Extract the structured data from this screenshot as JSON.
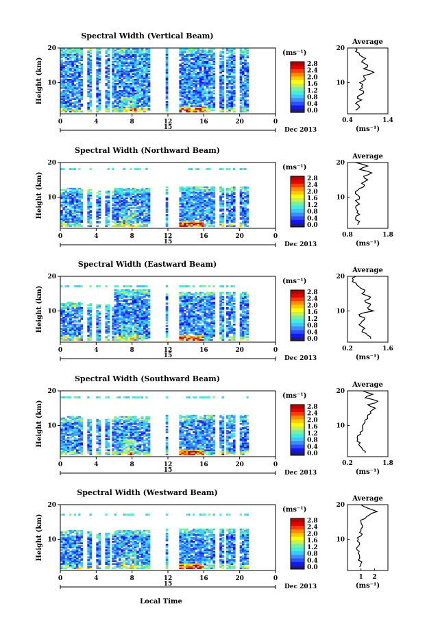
{
  "colorbar": {
    "unit": "(ms⁻¹)",
    "ticks": [
      "0.0",
      "0.4",
      "0.8",
      "1.2",
      "1.6",
      "2.0",
      "2.4",
      "2.8"
    ],
    "vmin": 0.0,
    "vmax": 3.0,
    "colors": [
      "#1e1e6e",
      "#1414ff",
      "#2850ff",
      "#3c8cff",
      "#3cc8ff",
      "#3cf0dc",
      "#78f0a0",
      "#c8f050",
      "#ffff00",
      "#ffc800",
      "#ff8c00",
      "#ff3c00",
      "#e60000",
      "#b40000"
    ]
  },
  "x_axis": {
    "ticks": [
      "0",
      "4",
      "8",
      "12",
      "16",
      "20",
      "0"
    ],
    "day_label": "15",
    "month_label": "Dec 2013",
    "xlabel": "Local Time"
  },
  "height_axis": {
    "label": "Height (km)",
    "ticks": [
      "20",
      "10"
    ]
  },
  "chart_data": [
    {
      "type": "heatmap",
      "title": "Spectral Width (Vertical Beam)",
      "xlabel": "",
      "ylabel": "Height (km)",
      "xlim": [
        0,
        24
      ],
      "ylim": [
        1,
        20
      ],
      "data_gaps_hours": [
        [
          10.5,
          11.6
        ],
        [
          11.7,
          13.2
        ],
        [
          11.8,
          12.1
        ]
      ],
      "profile": {
        "title": "Average",
        "xlabel": "(ms⁻¹)",
        "xticks": [
          "0.4",
          "1.4"
        ],
        "xlim": [
          0.4,
          1.4
        ],
        "yticks": [
          "20",
          "10"
        ],
        "height_km": [
          2,
          3,
          4,
          5,
          6,
          7,
          8,
          9,
          10,
          11,
          12,
          13,
          14,
          15,
          16,
          17,
          18,
          19,
          20
        ],
        "width_ms": [
          0.6,
          0.7,
          0.6,
          0.75,
          0.65,
          0.8,
          0.7,
          0.75,
          0.7,
          0.85,
          0.8,
          1.05,
          0.8,
          0.9,
          0.75,
          0.85,
          0.7,
          0.6,
          0.6
        ]
      }
    },
    {
      "type": "heatmap",
      "title": "Spectral Width (Northward Beam)",
      "xlabel": "",
      "ylabel": "Height (km)",
      "xlim": [
        0,
        24
      ],
      "ylim": [
        1,
        20
      ],
      "profile": {
        "title": "Average",
        "xlabel": "(ms⁻¹)",
        "xticks": [
          "0.8",
          "1.8"
        ],
        "xlim": [
          0.8,
          1.8
        ],
        "yticks": [
          "20",
          "10"
        ],
        "height_km": [
          2,
          3,
          4,
          5,
          6,
          7,
          8,
          9,
          10,
          11,
          12,
          13,
          14,
          15,
          16,
          17,
          18,
          19,
          20
        ],
        "width_ms": [
          1.05,
          1.1,
          1.0,
          1.1,
          1.05,
          1.0,
          1.1,
          1.0,
          1.1,
          1.0,
          1.05,
          1.2,
          1.15,
          1.3,
          1.2,
          1.4,
          1.1,
          1.3,
          1.0
        ]
      }
    },
    {
      "type": "heatmap",
      "title": "Spectral Width (Eastward Beam)",
      "xlabel": "",
      "ylabel": "Height (km)",
      "xlim": [
        0,
        24
      ],
      "ylim": [
        1,
        20
      ],
      "profile": {
        "title": "Average",
        "xlabel": "(ms⁻¹)",
        "xticks": [
          "0.2",
          "1.6"
        ],
        "xlim": [
          0.2,
          1.6
        ],
        "yticks": [
          "20",
          "10"
        ],
        "height_km": [
          2,
          3,
          4,
          5,
          6,
          7,
          8,
          9,
          10,
          11,
          12,
          13,
          14,
          15,
          16,
          17,
          18,
          19,
          20
        ],
        "width_ms": [
          1.0,
          0.9,
          0.7,
          0.8,
          0.6,
          0.7,
          0.8,
          0.6,
          1.1,
          0.9,
          1.0,
          0.8,
          1.0,
          0.7,
          0.8,
          0.6,
          0.5,
          0.4,
          0.5
        ]
      }
    },
    {
      "type": "heatmap",
      "title": "Spectral Width (Southward Beam)",
      "xlabel": "",
      "ylabel": "Height (km)",
      "xlim": [
        0,
        24
      ],
      "ylim": [
        1,
        20
      ],
      "profile": {
        "title": "Average",
        "xlabel": "(ms⁻¹)",
        "xticks": [
          "0.2",
          "1.8"
        ],
        "xlim": [
          0.2,
          1.8
        ],
        "yticks": [
          "20",
          "10"
        ],
        "height_km": [
          2,
          3,
          4,
          5,
          6,
          7,
          8,
          9,
          10,
          11,
          12,
          13,
          14,
          15,
          16,
          17,
          18,
          19,
          20
        ],
        "width_ms": [
          0.9,
          0.8,
          0.7,
          0.7,
          0.6,
          0.6,
          0.7,
          0.8,
          0.8,
          0.9,
          1.0,
          1.0,
          1.1,
          1.3,
          1.0,
          1.4,
          0.9,
          1.2,
          0.8
        ]
      }
    },
    {
      "type": "heatmap",
      "title": "Spectral Width (Westward Beam)",
      "xlabel": "Local Time",
      "ylabel": "Height (km)",
      "xlim": [
        0,
        24
      ],
      "ylim": [
        1,
        20
      ],
      "profile": {
        "title": "Average",
        "xlabel": "(ms⁻¹)",
        "xticks": [
          "1",
          "2"
        ],
        "xlim": [
          0,
          3
        ],
        "yticks": [
          "20",
          "10"
        ],
        "height_km": [
          2,
          3,
          4,
          5,
          6,
          7,
          8,
          9,
          10,
          11,
          12,
          13,
          14,
          15,
          16,
          17,
          18,
          19,
          20
        ],
        "width_ms": [
          0.9,
          1.0,
          0.8,
          0.9,
          0.8,
          0.7,
          0.8,
          0.9,
          0.8,
          1.0,
          0.9,
          1.0,
          1.1,
          1.0,
          1.3,
          1.6,
          2.2,
          1.5,
          1.0
        ]
      }
    }
  ]
}
